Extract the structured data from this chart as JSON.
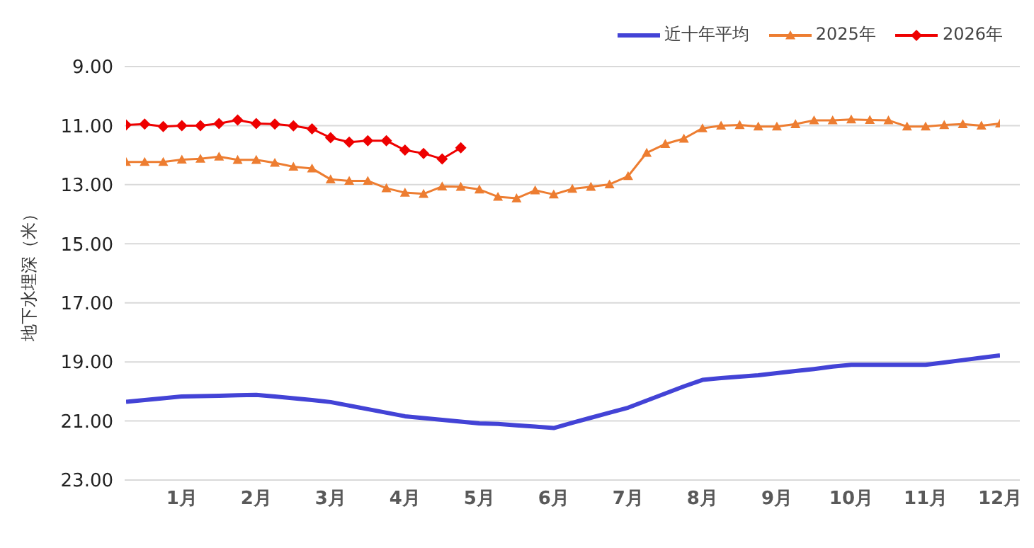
{
  "chart_data": {
    "type": "line",
    "ylabel": "地下水埋深（米）",
    "categories": [
      null,
      null,
      null,
      "1月",
      null,
      null,
      null,
      "2月",
      null,
      null,
      null,
      "3月",
      null,
      null,
      null,
      "4月",
      null,
      null,
      null,
      "5月",
      null,
      null,
      null,
      "6月",
      null,
      null,
      null,
      "7月",
      null,
      null,
      null,
      "8月",
      null,
      null,
      null,
      "9月",
      null,
      null,
      null,
      "10月",
      null,
      null,
      null,
      "11月",
      null,
      null,
      null,
      "12月"
    ],
    "series": [
      {
        "name": "近十年平均",
        "color": "#4343d6",
        "marker": "none",
        "values": [
          20.35,
          20.29,
          20.23,
          20.17,
          20.16,
          20.15,
          20.13,
          20.12,
          20.17,
          20.23,
          20.29,
          20.36,
          20.48,
          20.6,
          20.72,
          20.84,
          20.9,
          20.96,
          21.02,
          21.08,
          21.1,
          21.15,
          21.19,
          21.24,
          21.06,
          20.89,
          20.72,
          20.55,
          20.31,
          20.07,
          19.83,
          19.61,
          19.55,
          19.5,
          19.45,
          19.38,
          19.31,
          19.24,
          19.16,
          19.1,
          19.1,
          19.1,
          19.1,
          19.1,
          19.02,
          18.94,
          18.86,
          18.78
        ]
      },
      {
        "name": "2025年",
        "color": "#ed7d31",
        "marker": "triangle",
        "values": [
          12.23,
          12.23,
          12.23,
          12.15,
          12.12,
          12.05,
          12.16,
          12.16,
          12.26,
          12.39,
          12.45,
          12.82,
          12.87,
          12.87,
          13.12,
          13.27,
          13.31,
          13.06,
          13.07,
          13.16,
          13.41,
          13.46,
          13.19,
          13.33,
          13.14,
          13.07,
          12.99,
          12.71,
          11.92,
          11.62,
          11.44,
          11.09,
          11.0,
          10.98,
          11.03,
          11.03,
          10.95,
          10.82,
          10.82,
          10.79,
          10.81,
          10.82,
          11.03,
          11.03,
          10.98,
          10.95,
          11.0,
          10.93
        ]
      },
      {
        "name": "2026年",
        "color": "#ee0000",
        "marker": "diamond",
        "values": [
          10.98,
          10.95,
          11.03,
          11.0,
          11.0,
          10.93,
          10.81,
          10.93,
          10.95,
          11.01,
          11.11,
          11.41,
          11.56,
          11.51,
          11.51,
          11.83,
          11.94,
          12.13,
          11.75,
          null,
          null,
          null,
          null,
          null,
          null,
          null,
          null,
          null,
          null,
          null,
          null,
          null,
          null,
          null,
          null,
          null,
          null,
          null,
          null,
          null,
          null,
          null,
          null,
          null,
          null,
          null,
          null,
          null
        ]
      }
    ],
    "ylim": [
      23,
      9
    ],
    "yticks": [
      {
        "value": 9,
        "label": "9.00"
      },
      {
        "value": 11,
        "label": "11.00"
      },
      {
        "value": 13,
        "label": "13.00"
      },
      {
        "value": 15,
        "label": "15.00"
      },
      {
        "value": 17,
        "label": "17.00"
      },
      {
        "value": 19,
        "label": "19.00"
      },
      {
        "value": 21,
        "label": "21.00"
      },
      {
        "value": 23,
        "label": "23.00"
      }
    ],
    "grid": "y",
    "legend": "top right"
  }
}
